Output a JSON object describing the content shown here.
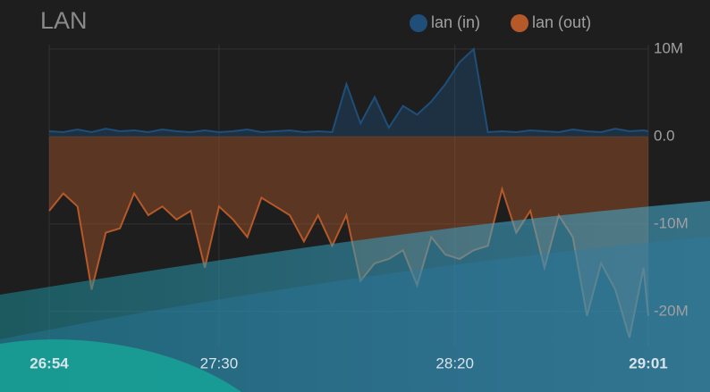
{
  "chart_data": {
    "type": "area",
    "title": "LAN",
    "x": [
      1614,
      1617,
      1620,
      1623,
      1626,
      1629,
      1632,
      1635,
      1638,
      1641,
      1644,
      1647,
      1650,
      1653,
      1656,
      1659,
      1662,
      1665,
      1668,
      1671,
      1674,
      1677,
      1680,
      1683,
      1686,
      1689,
      1692,
      1695,
      1698,
      1701,
      1704,
      1707,
      1710,
      1713,
      1716,
      1719,
      1722,
      1725,
      1728,
      1731,
      1734,
      1737,
      1740,
      1741
    ],
    "series": [
      {
        "name": "lan (in)",
        "color": "#1f4e79",
        "values": [
          600000,
          500000,
          800000,
          500000,
          900000,
          600000,
          700000,
          500000,
          800000,
          600000,
          500000,
          700000,
          500000,
          600000,
          800000,
          500000,
          600000,
          700000,
          500000,
          600000,
          500000,
          6000000,
          1500000,
          4500000,
          1000000,
          3500000,
          2500000,
          4000000,
          6000000,
          8500000,
          10000000,
          500000,
          600000,
          500000,
          700000,
          600000,
          500000,
          800000,
          600000,
          500000,
          900000,
          600000,
          700000,
          600000
        ]
      },
      {
        "name": "lan (out)",
        "color": "#b5592a",
        "values": [
          -8500000,
          -6500000,
          -8000000,
          -17500000,
          -11000000,
          -10500000,
          -6500000,
          -9000000,
          -8000000,
          -9500000,
          -8500000,
          -15000000,
          -8000000,
          -9500000,
          -11500000,
          -7000000,
          -8000000,
          -9000000,
          -12000000,
          -9000000,
          -12500000,
          -9000000,
          -16500000,
          -14500000,
          -14000000,
          -13000000,
          -17000000,
          -11500000,
          -13500000,
          -14000000,
          -13000000,
          -12500000,
          -6000000,
          -11000000,
          -8500000,
          -15000000,
          -9000000,
          -11500000,
          -20500000,
          -14500000,
          -17500000,
          -23000000,
          -15000000,
          -20500000
        ]
      }
    ],
    "xlim": [
      1614,
      1741
    ],
    "xticks": [
      {
        "value": 1614,
        "label": "26:54"
      },
      {
        "value": 1650,
        "label": "27:30"
      },
      {
        "value": 1700,
        "label": "28:20"
      },
      {
        "value": 1741,
        "label": "29:01"
      }
    ],
    "ylim": [
      -24000000,
      10500000
    ],
    "yticks": [
      {
        "value": 10000000,
        "label": "10M"
      },
      {
        "value": 0,
        "label": "0.0"
      },
      {
        "value": -10000000,
        "label": "-10M"
      },
      {
        "value": -20000000,
        "label": "-20M"
      }
    ],
    "grid": true
  }
}
